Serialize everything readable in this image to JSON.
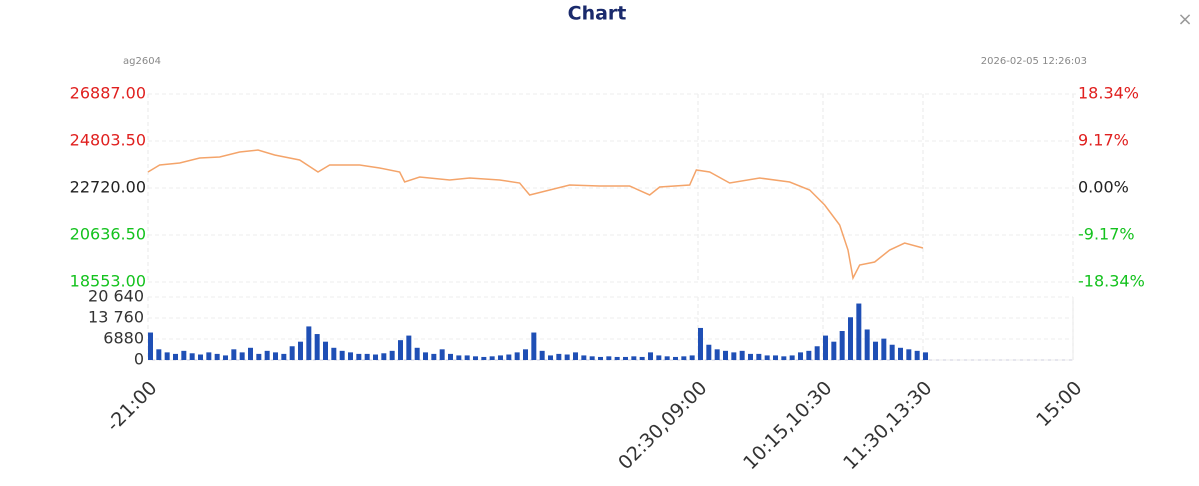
{
  "close_button": "×",
  "chart_data": {
    "type": "line",
    "title": "Chart",
    "symbol": "ag2604",
    "timestamp": "2026-02-05 12:26:03",
    "up_color": "#e0201f",
    "down_color": "#14c21e",
    "flat_color": "#222222",
    "grid": true,
    "xlim": [
      0,
      555
    ],
    "xticks": [
      {
        "value": 0,
        "label": "-21:00"
      },
      {
        "value": 330,
        "label": "02:30,09:00"
      },
      {
        "value": 405,
        "label": "10:15,10:30"
      },
      {
        "value": 465,
        "label": "11:30,13:30"
      },
      {
        "value": 555,
        "label": "15:00"
      }
    ],
    "ylim": [
      18553,
      26887
    ],
    "yticks": [
      {
        "value": 26887,
        "label": "26887.00"
      },
      {
        "value": 24803.5,
        "label": "24803.50"
      },
      {
        "value": 22720,
        "label": "22720.00"
      },
      {
        "value": 20636.5,
        "label": "20636.50"
      },
      {
        "value": 18553,
        "label": "18553.00"
      }
    ],
    "y2lim": [
      -18.34,
      18.34
    ],
    "y2ticks": [
      {
        "value": 18.34,
        "label": "18.34%"
      },
      {
        "value": 9.17,
        "label": "9.17%"
      },
      {
        "value": 0,
        "label": "0.00%"
      },
      {
        "value": -9.17,
        "label": "-9.17%"
      },
      {
        "value": -18.34,
        "label": "-18.34%"
      }
    ],
    "price": {
      "color": "#f4a46a",
      "x": [
        0,
        7,
        19,
        31,
        43,
        55,
        66,
        76,
        91,
        102,
        109,
        127,
        139,
        151,
        154,
        163,
        181,
        193,
        211,
        223,
        229,
        241,
        253,
        271,
        289,
        301,
        307,
        325,
        329,
        337,
        349,
        367,
        385,
        397,
        406,
        415,
        420,
        423,
        427,
        436,
        445,
        454,
        465
      ],
      "values": [
        23429,
        23739,
        23828,
        24050,
        24094,
        24316,
        24404,
        24183,
        23961,
        23429,
        23739,
        23739,
        23607,
        23429,
        22986,
        23208,
        23075,
        23163,
        23075,
        22941,
        22410,
        22631,
        22853,
        22808,
        22808,
        22410,
        22764,
        22853,
        23518,
        23429,
        22941,
        23163,
        22986,
        22631,
        21966,
        21079,
        19971,
        18730,
        19306,
        19439,
        19971,
        20281,
        20060
      ]
    },
    "volume": {
      "color": "#1f4fb5",
      "ylim": [
        0,
        20640
      ],
      "yticks": [
        {
          "value": 20640,
          "label": "20 640"
        },
        {
          "value": 13760,
          "label": "13 760"
        },
        6880,
        0
      ],
      "x": [
        0,
        5,
        10,
        15,
        20,
        25,
        30,
        35,
        40,
        45,
        50,
        55,
        60,
        65,
        70,
        75,
        80,
        85,
        90,
        95,
        100,
        105,
        110,
        115,
        120,
        125,
        130,
        135,
        140,
        145,
        150,
        155,
        160,
        165,
        170,
        175,
        180,
        185,
        190,
        195,
        200,
        205,
        210,
        215,
        220,
        225,
        230,
        235,
        240,
        245,
        250,
        255,
        260,
        265,
        270,
        275,
        280,
        285,
        290,
        295,
        300,
        305,
        310,
        315,
        320,
        325,
        330,
        335,
        340,
        345,
        350,
        355,
        360,
        365,
        370,
        375,
        380,
        385,
        390,
        395,
        400,
        405,
        410,
        415,
        420,
        425,
        430,
        435,
        440,
        445,
        450,
        455,
        460,
        465
      ],
      "values": [
        9000,
        3500,
        2500,
        2000,
        3000,
        2200,
        1800,
        2500,
        2000,
        1500,
        3500,
        2500,
        4000,
        2000,
        3000,
        2500,
        2000,
        4500,
        6000,
        11000,
        8500,
        6000,
        4000,
        3000,
        2500,
        2000,
        2000,
        1800,
        2200,
        3000,
        6500,
        8000,
        4000,
        2500,
        2000,
        3500,
        2000,
        1500,
        1500,
        1200,
        1000,
        1200,
        1500,
        1800,
        2500,
        3500,
        9000,
        3000,
        1500,
        2000,
        1800,
        2500,
        1500,
        1200,
        1000,
        1200,
        1000,
        1000,
        1200,
        1000,
        2500,
        1500,
        1200,
        1000,
        1200,
        1500,
        10500,
        5000,
        3500,
        3000,
        2500,
        3000,
        2000,
        2000,
        1500,
        1500,
        1200,
        1500,
        2500,
        3000,
        4500,
        8000,
        6000,
        9500,
        14000,
        18500,
        10000,
        6000,
        7000,
        5000,
        4000,
        3500,
        3000,
        2500
      ]
    }
  }
}
